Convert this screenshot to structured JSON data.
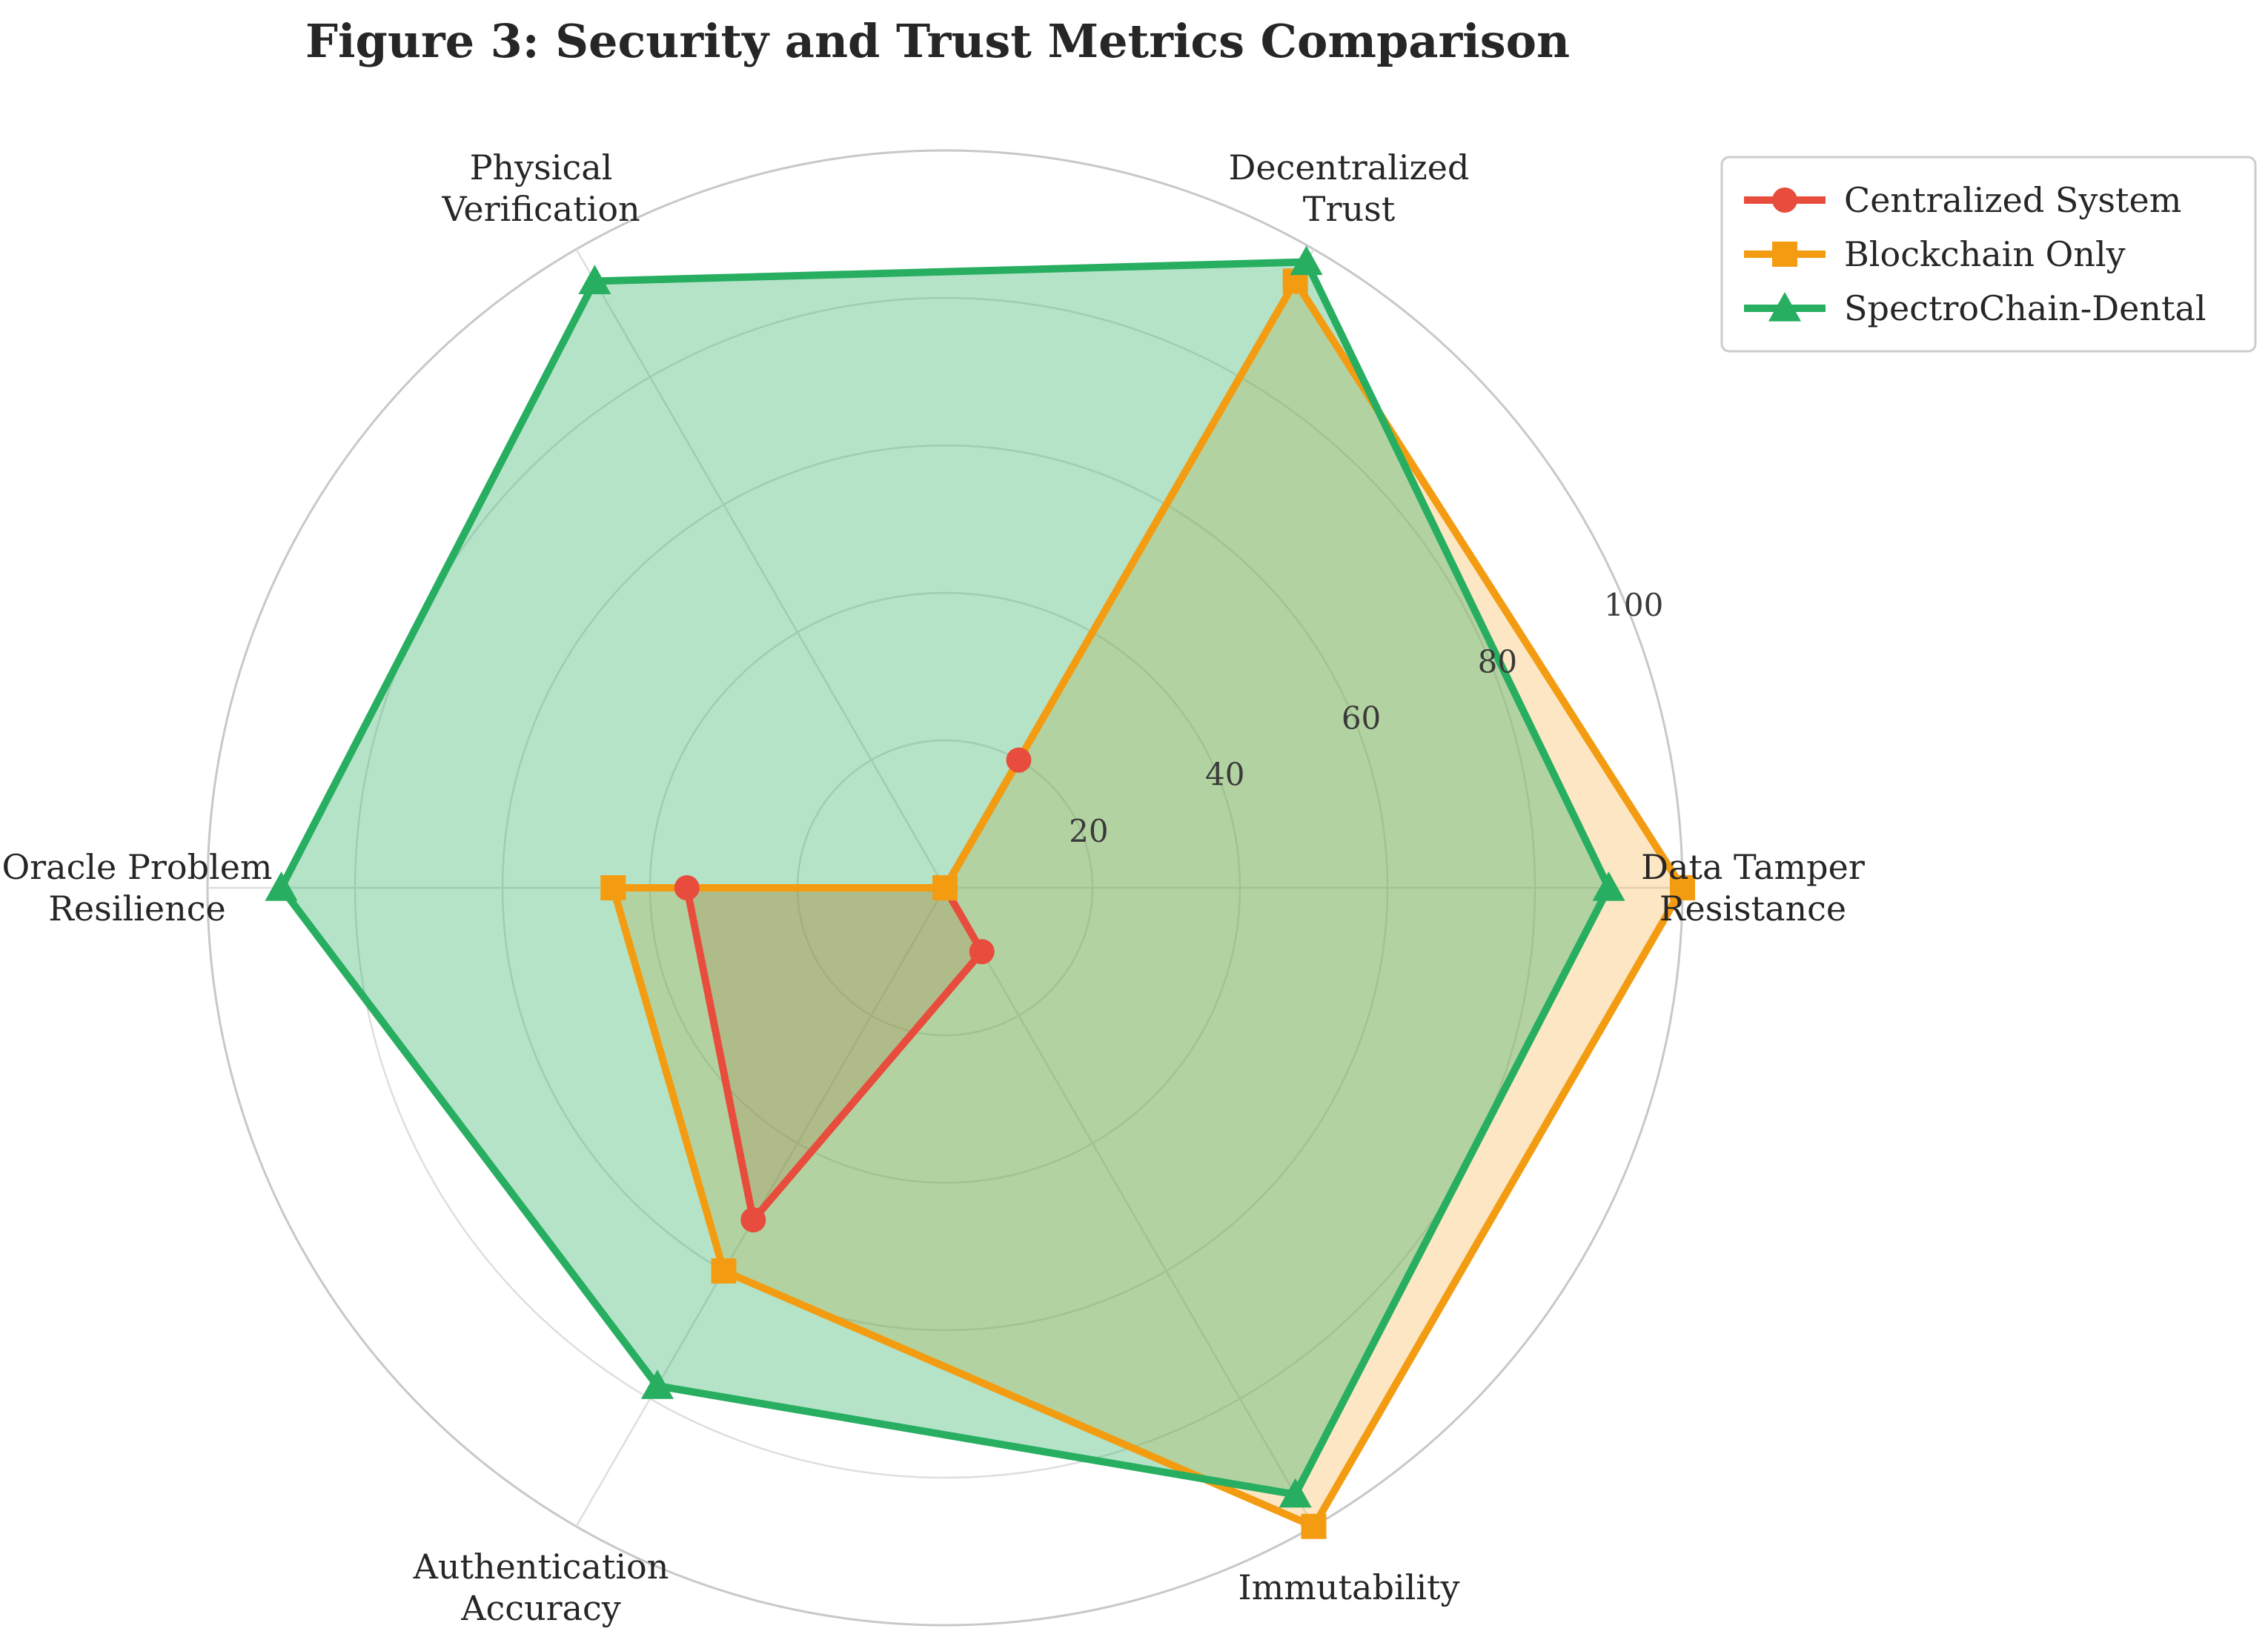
{
  "chart_data": {
    "type": "radar",
    "title": "Figure 3: Security and Trust Metrics Comparison",
    "axes": [
      [
        "Data Tamper",
        "Resistance"
      ],
      [
        "Decentralized",
        "Trust"
      ],
      [
        "Physical",
        "Verification"
      ],
      [
        "Oracle Problem",
        "Resilience"
      ],
      [
        "Authentication",
        "Accuracy"
      ],
      [
        "Immutability"
      ]
    ],
    "rlim": [
      0,
      100
    ],
    "rticks": [
      "20",
      "40",
      "60",
      "80",
      "100"
    ],
    "rtick_values": [
      20,
      40,
      60,
      80,
      100
    ],
    "grid": true,
    "legend_position": "top-right",
    "series": [
      {
        "name": "Centralized System",
        "values": [
          0,
          20,
          0,
          35,
          52,
          10
        ],
        "color": "#e74c3c",
        "marker": "circle",
        "fill_opacity": 0.25
      },
      {
        "name": "Blockchain Only",
        "values": [
          100,
          95,
          0,
          45,
          60,
          100
        ],
        "color": "#f39c12",
        "marker": "square",
        "fill_opacity": 0.25
      },
      {
        "name": "SpectroChain-Dental",
        "values": [
          90,
          98,
          95,
          90,
          78,
          95
        ],
        "color": "#27ae60",
        "marker": "triangle",
        "fill_opacity": 0.35
      }
    ]
  }
}
